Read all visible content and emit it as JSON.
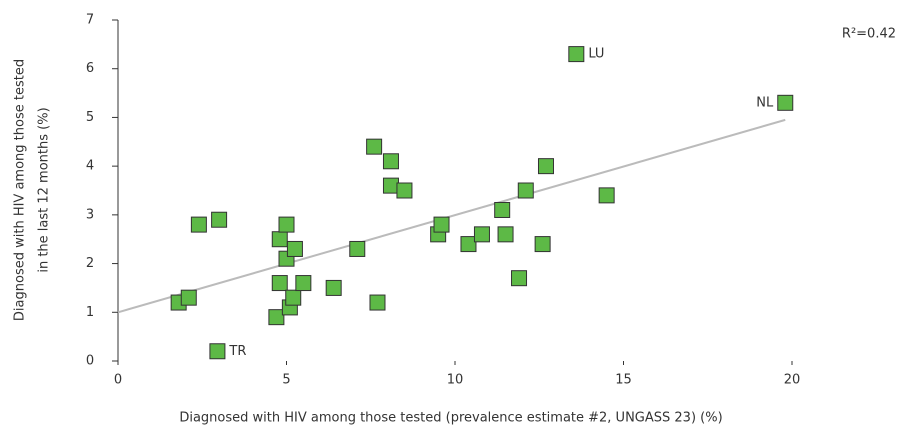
{
  "chart_data": {
    "type": "scatter",
    "xlabel": "Diagnosed with HIV among those tested (prevalence estimate #2, UNGASS 23) (%)",
    "ylabel": [
      "Diagnosed with HIV among those tested",
      "in the last 12 months (%)"
    ],
    "annotation": "R²=0.42",
    "xlim": [
      0,
      20
    ],
    "xticks": [
      0,
      5,
      10,
      15,
      20
    ],
    "ylim": [
      0,
      7
    ],
    "yticks": [
      0,
      1,
      2,
      3,
      4,
      5,
      6,
      7
    ],
    "color": "#5db946",
    "x": [
      1.8,
      2.1,
      2.4,
      3.0,
      2.95,
      4.8,
      5.0,
      5.0,
      5.25,
      4.8,
      4.7,
      5.1,
      5.2,
      5.5,
      6.4,
      7.1,
      7.6,
      7.7,
      8.1,
      8.1,
      8.5,
      9.5,
      9.6,
      10.4,
      10.8,
      11.4,
      11.5,
      11.9,
      12.1,
      12.6,
      12.7,
      14.5,
      13.6,
      19.8
    ],
    "y": [
      1.2,
      1.3,
      2.8,
      2.9,
      0.2,
      2.5,
      2.8,
      2.1,
      2.3,
      1.6,
      0.9,
      1.1,
      1.3,
      1.6,
      1.5,
      2.3,
      4.4,
      1.2,
      4.1,
      3.6,
      3.5,
      2.6,
      2.8,
      2.4,
      2.6,
      3.1,
      2.6,
      1.7,
      3.5,
      2.4,
      4.0,
      3.4,
      6.3,
      5.3
    ],
    "point_labels": [
      null,
      null,
      null,
      null,
      "TR",
      null,
      null,
      null,
      null,
      null,
      null,
      null,
      null,
      null,
      null,
      null,
      null,
      null,
      null,
      null,
      null,
      null,
      null,
      null,
      null,
      null,
      null,
      null,
      null,
      null,
      null,
      null,
      "LU",
      "NL"
    ],
    "trendline": {
      "color": "#bbbbbb",
      "x": [
        0,
        19.8
      ],
      "y": [
        1.0,
        4.95
      ]
    }
  }
}
